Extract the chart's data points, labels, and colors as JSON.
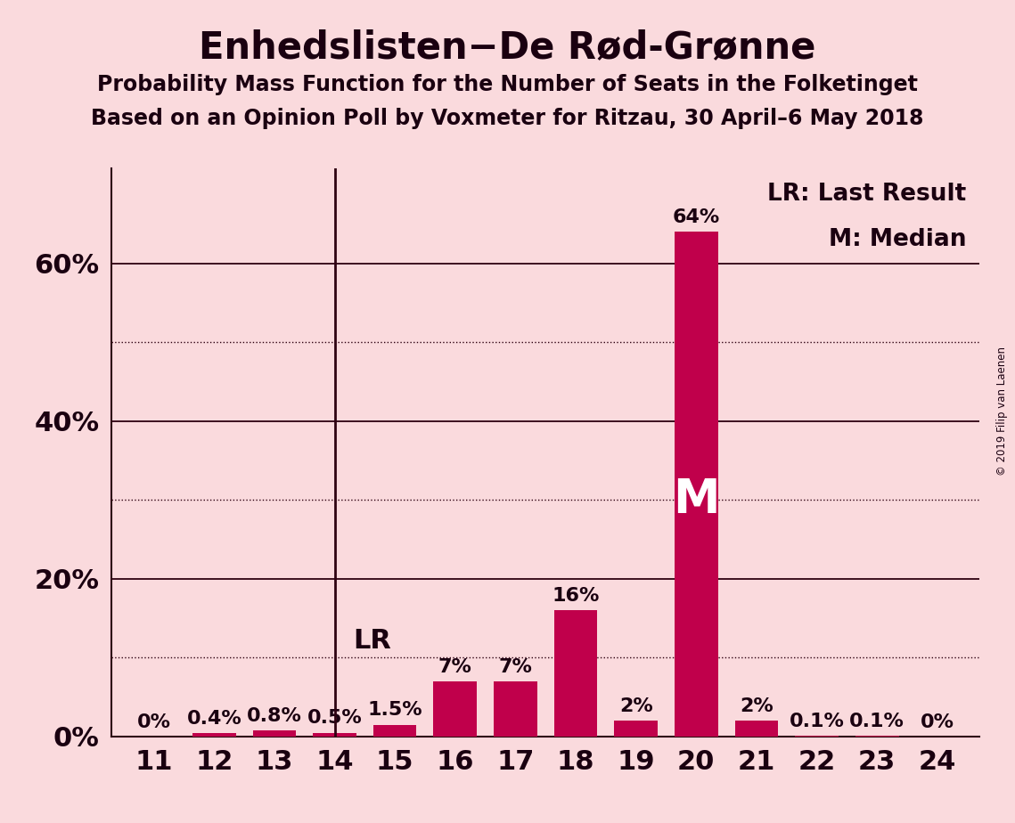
{
  "title": "Enhedslisten−De Rød-Grønne",
  "subtitle1": "Probability Mass Function for the Number of Seats in the Folketinget",
  "subtitle2": "Based on an Opinion Poll by Voxmeter for Ritzau, 30 April–6 May 2018",
  "copyright": "© 2019 Filip van Laenen",
  "seats": [
    11,
    12,
    13,
    14,
    15,
    16,
    17,
    18,
    19,
    20,
    21,
    22,
    23,
    24
  ],
  "probabilities": [
    0.0,
    0.4,
    0.8,
    0.5,
    1.5,
    7.0,
    7.0,
    16.0,
    2.0,
    64.0,
    2.0,
    0.1,
    0.1,
    0.0
  ],
  "bar_color": "#C0004B",
  "background_color": "#FADADD",
  "lr_seat": 14,
  "median_seat": 20,
  "solid_gridlines": [
    0,
    20,
    40,
    60
  ],
  "dotted_gridlines": [
    10,
    30,
    50
  ],
  "ylim": [
    0,
    72
  ],
  "yticks": [
    0,
    20,
    40,
    60
  ],
  "ytick_labels": [
    "0%",
    "20%",
    "40%",
    "60%"
  ],
  "legend_lr": "LR: Last Result",
  "legend_m": "M: Median",
  "title_fontsize": 30,
  "subtitle_fontsize": 17,
  "axis_fontsize": 22,
  "bar_label_fontsize": 16,
  "legend_fontsize": 19,
  "lr_label_fontsize": 22,
  "m_label_fontsize": 38
}
